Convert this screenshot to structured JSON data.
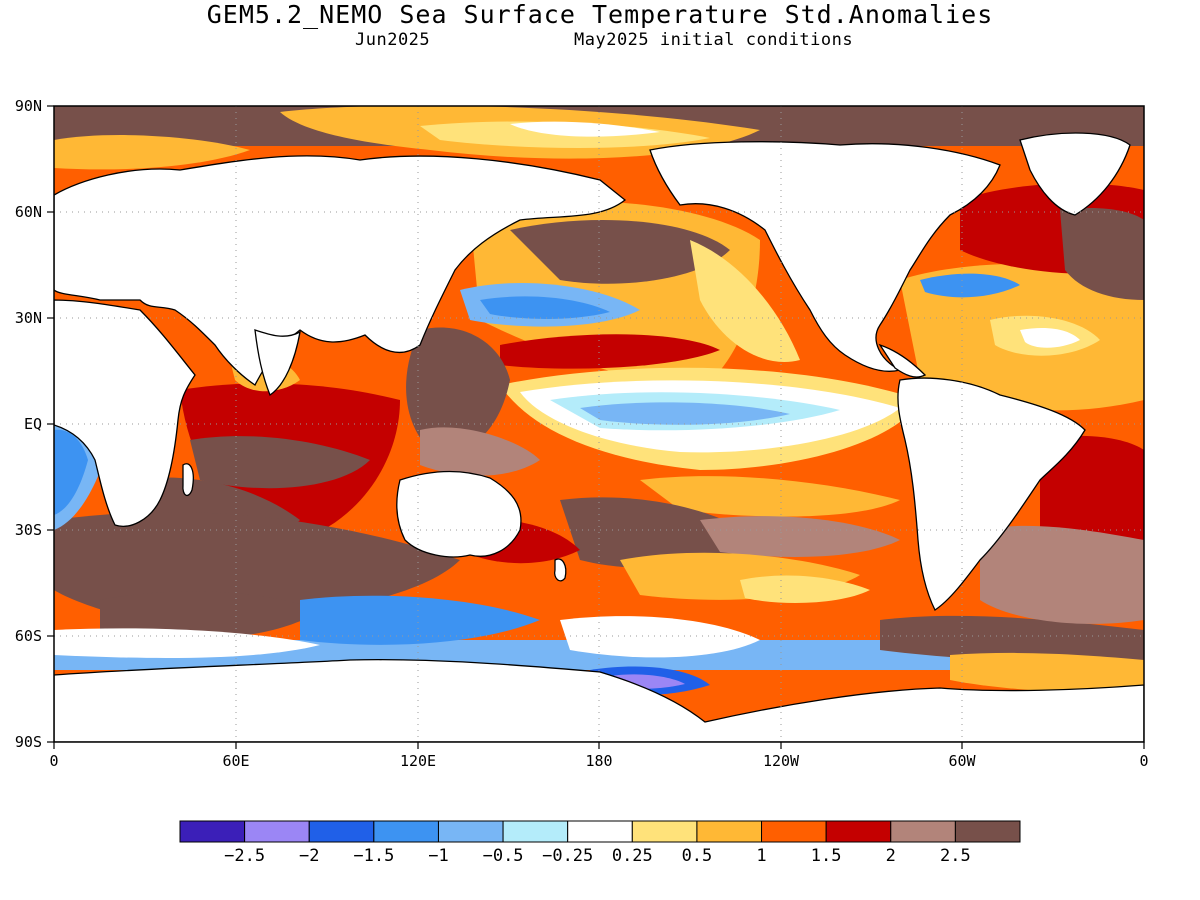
{
  "header": {
    "title": "GEM5.2_NEMO Sea Surface Temperature Std.Anomalies",
    "valid_month": "Jun2025",
    "init_conditions": "May2025 initial conditions"
  },
  "map": {
    "lat_labels": [
      "90N",
      "60N",
      "30N",
      "EQ",
      "30S",
      "60S",
      "90S"
    ],
    "lon_labels": [
      "0",
      "60E",
      "120E",
      "180",
      "120W",
      "60W",
      "0"
    ],
    "grid": "dotted",
    "land_color": "#ffffff",
    "coastline_color": "#000000"
  },
  "legend": {
    "colors": [
      "#3b1fb8",
      "#9b86f5",
      "#2060e8",
      "#3d93f2",
      "#78b6f5",
      "#b4ecfa",
      "#ffffff",
      "#ffe27a",
      "#ffb835",
      "#ff5f00",
      "#c40000",
      "#b2847a",
      "#77504a"
    ],
    "labels": [
      "−2.5",
      "−2",
      "−1.5",
      "−1",
      "−0.5",
      "−0.25",
      "0.25",
      "0.5",
      "1",
      "1.5",
      "2",
      "2.5"
    ]
  }
}
